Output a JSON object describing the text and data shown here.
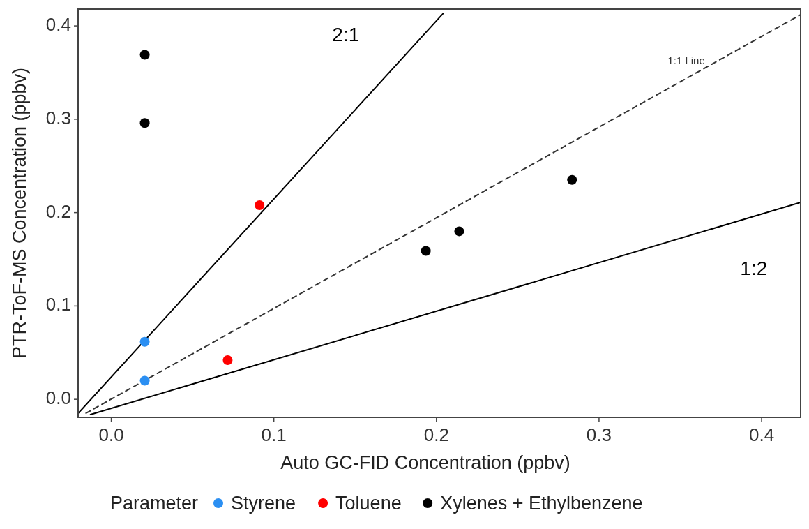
{
  "chart_data": {
    "type": "scatter",
    "xlabel": "Auto GC-FID Concentration (ppbv)",
    "ylabel": "PTR-ToF-MS Concentration (ppbv)",
    "legend_title": "Parameter",
    "legend": "bottom",
    "marker": "circle",
    "grid": false,
    "xlim": [
      -0.0204,
      0.424
    ],
    "xticks": [
      {
        "value": 0,
        "label": "0.0"
      },
      0.1,
      0.2,
      0.3,
      0.4
    ],
    "ylim": [
      -0.0193,
      0.418
    ],
    "yticks": [
      {
        "value": 0,
        "label": "0.0"
      },
      0.1,
      0.2,
      0.3,
      0.4
    ],
    "series": [
      {
        "name": "2:1",
        "type": "line",
        "marker": "none",
        "color": "#000000",
        "line_style": "solid",
        "x": [
          -0.0204,
          0.204
        ],
        "values": [
          -0.015,
          0.413
        ]
      },
      {
        "name": "1:1 Line",
        "type": "line",
        "marker": "none",
        "color": "#333333",
        "line_style": "dashed",
        "x": [
          -0.0155,
          0.424
        ],
        "values": [
          -0.0148,
          0.412
        ]
      },
      {
        "name": "1:2",
        "type": "line",
        "marker": "none",
        "color": "#000000",
        "line_style": "solid",
        "x": [
          -0.0128,
          0.424
        ],
        "values": [
          -0.0163,
          0.211
        ]
      },
      {
        "name": "Styrene",
        "color": "#2b8ff2",
        "x": [
          0.0206,
          0.0206
        ],
        "values": [
          0.0616,
          0.02
        ]
      },
      {
        "name": "Toluene",
        "color": "#ff0000",
        "x": [
          0.0716,
          0.0912
        ],
        "values": [
          0.042,
          0.208
        ]
      },
      {
        "name": "Xylenes + Ethylbenzene",
        "color": "#000000",
        "x": [
          0.0206,
          0.0206,
          0.1935,
          0.214,
          0.2834
        ],
        "values": [
          0.369,
          0.296,
          0.159,
          0.18,
          0.235
        ]
      }
    ]
  }
}
